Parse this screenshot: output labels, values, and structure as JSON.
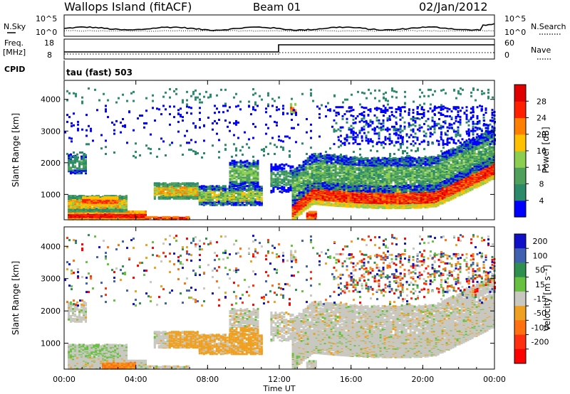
{
  "header": {
    "station": "Wallops Island (fitACF)",
    "beam": "Beam 01",
    "date": "02/Jan/2012"
  },
  "noise_panel": {
    "left_label": "N.Sky",
    "right_label": "N.Search",
    "left_ticks": [
      "10^5",
      "10^0"
    ],
    "right_ticks": [
      "10^5",
      "10^0"
    ]
  },
  "freq_panel": {
    "left_label_line1": "Freq.",
    "left_label_line2": "[MHz]",
    "left_ticks": [
      "18",
      "8"
    ],
    "right_label": "Nave",
    "right_ticks": [
      "60",
      "0"
    ],
    "step_time_ut": "12:00"
  },
  "cpid_panel": {
    "label": "CPID",
    "value": "tau (fast) 503"
  },
  "chart_data": [
    {
      "type": "heatmap",
      "name": "power",
      "ylabel": "Slant Range [km]",
      "y_ticks": [
        "1000",
        "2000",
        "3000",
        "4000"
      ],
      "ylim": [
        200,
        4600
      ],
      "colorbar_label": "Power [dB]",
      "colorbar_ticks": [
        "4",
        "8",
        "12",
        "16",
        "20",
        "24",
        "28"
      ],
      "colors": [
        "#0000ff",
        "#2a8a6a",
        "#4fa05a",
        "#8ccf50",
        "#ffc000",
        "#ff8000",
        "#ff2000",
        "#e00000"
      ]
    },
    {
      "type": "heatmap",
      "name": "velocity",
      "ylabel": "Slant Range [km]",
      "y_ticks": [
        "1000",
        "2000",
        "3000",
        "4000"
      ],
      "ylim": [
        200,
        4600
      ],
      "colorbar_label": "Velocity [m s⁻¹]",
      "colorbar_ticks": [
        "200",
        "100",
        "50",
        "15",
        "-15",
        "-50",
        "-100",
        "-200"
      ],
      "colors": [
        "#1010c8",
        "#4060b0",
        "#2f8f4f",
        "#68c040",
        "#c8c8c0",
        "#f0a020",
        "#ff7010",
        "#ff3010",
        "#ff0000"
      ]
    }
  ],
  "x_axis": {
    "ticks": [
      "00:00",
      "04:00",
      "08:00",
      "12:00",
      "16:00",
      "20:00",
      "00:00"
    ],
    "label": "Time UT"
  }
}
